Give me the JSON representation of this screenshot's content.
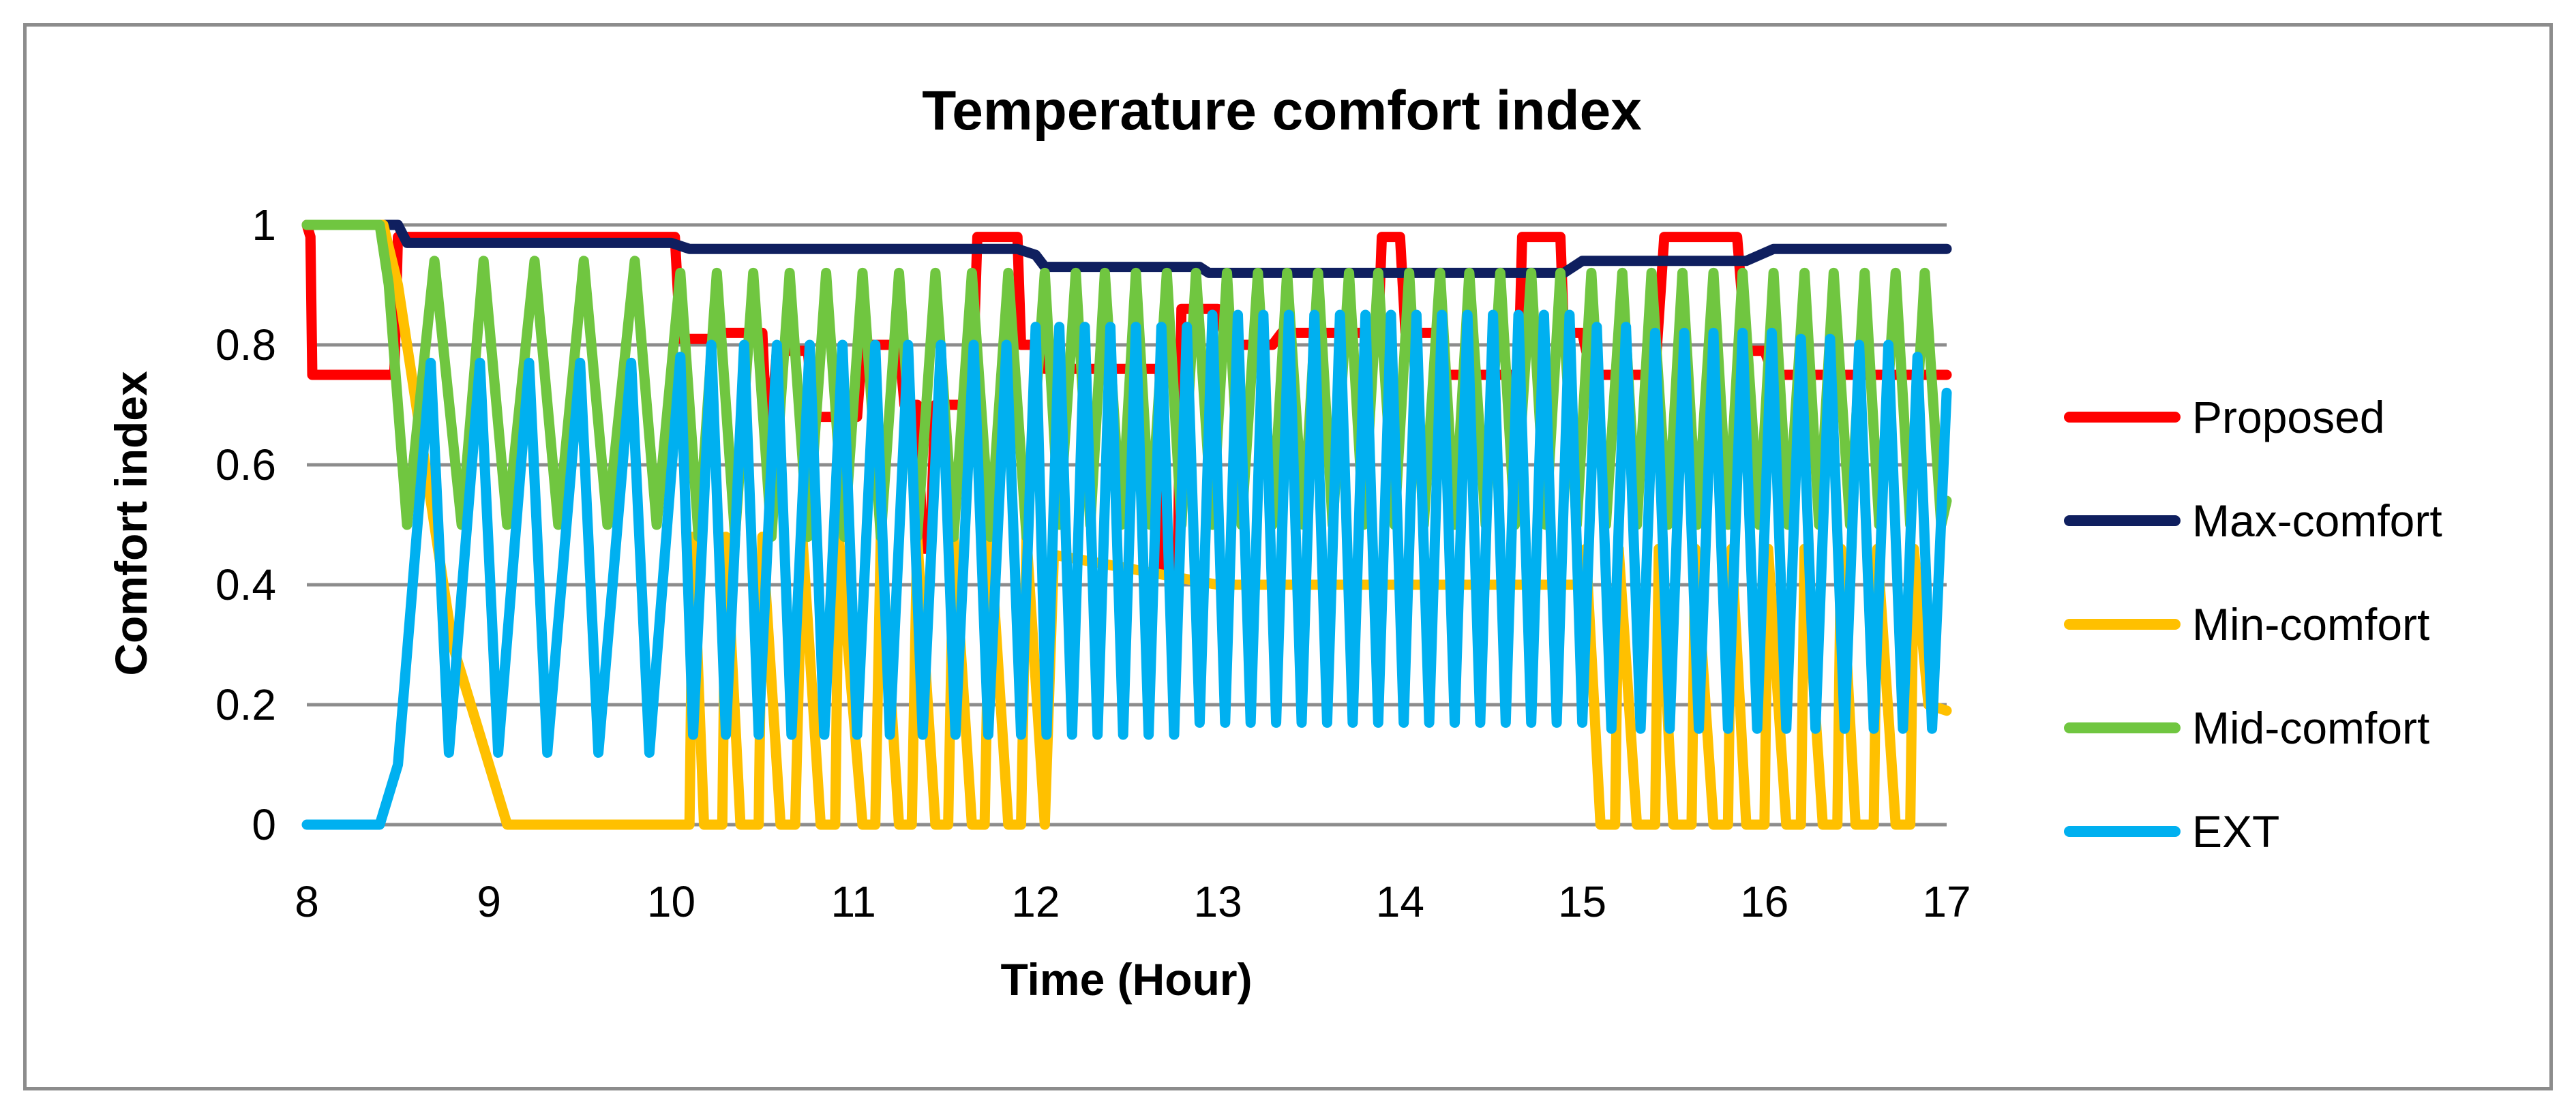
{
  "chart_data": {
    "type": "line",
    "title": "Temperature comfort index",
    "xlabel": "Time (Hour)",
    "ylabel": "Comfort index",
    "xlim": [
      8,
      17
    ],
    "ylim": [
      0,
      1
    ],
    "x_ticks": [
      "8",
      "9",
      "10",
      "11",
      "12",
      "13",
      "14",
      "15",
      "16",
      "17"
    ],
    "y_ticks": [
      "0",
      "0.2",
      "0.4",
      "0.6",
      "0.8",
      "1"
    ],
    "grid": "horizontal",
    "legend_position": "right",
    "series": [
      {
        "name": "Proposed",
        "color": "#ff0000",
        "x": [
          8,
          8.02,
          8.03,
          8.48,
          8.5,
          10.02,
          10.05,
          10.25,
          10.28,
          10.5,
          10.52,
          10.55,
          10.58,
          10.75,
          10.78,
          11.02,
          11.05,
          11.25,
          11.28,
          11.35,
          11.38,
          11.42,
          11.45,
          11.65,
          11.68,
          11.9,
          11.92,
          12.02,
          12.05,
          12.68,
          12.7,
          12.78,
          12.8,
          13.0,
          13.05,
          13.3,
          13.35,
          13.88,
          13.9,
          14.0,
          14.03,
          14.2,
          14.25,
          14.65,
          14.67,
          14.88,
          14.9,
          15.0,
          15.05,
          15.4,
          15.45,
          15.85,
          15.9,
          16.0,
          16.05,
          17.0
        ],
        "y": [
          1,
          0.98,
          0.75,
          0.75,
          0.98,
          0.98,
          0.81,
          0.81,
          0.82,
          0.82,
          0.68,
          0.68,
          0.79,
          0.79,
          0.68,
          0.68,
          0.8,
          0.8,
          0.7,
          0.7,
          0.46,
          0.46,
          0.7,
          0.7,
          0.98,
          0.98,
          0.8,
          0.8,
          0.76,
          0.76,
          0.43,
          0.43,
          0.86,
          0.86,
          0.8,
          0.8,
          0.82,
          0.82,
          0.98,
          0.98,
          0.82,
          0.82,
          0.75,
          0.75,
          0.98,
          0.98,
          0.82,
          0.82,
          0.75,
          0.75,
          0.98,
          0.98,
          0.79,
          0.79,
          0.75,
          0.75
        ]
      },
      {
        "name": "Max-comfort",
        "color": "#0f1f5f",
        "x": [
          8,
          8.5,
          8.55,
          10.0,
          10.1,
          11.9,
          12.0,
          12.05,
          12.9,
          12.95,
          13.6,
          14.9,
          15.0,
          15.2,
          15.9,
          16.05,
          17.0
        ],
        "y": [
          1,
          1,
          0.97,
          0.97,
          0.96,
          0.96,
          0.95,
          0.93,
          0.93,
          0.92,
          0.92,
          0.92,
          0.94,
          0.94,
          0.94,
          0.96,
          0.96
        ]
      },
      {
        "name": "Min-comfort",
        "color": "#ffc000",
        "x": [
          8,
          8.42,
          8.5,
          8.8,
          9.1,
          10.05,
          10.1,
          10.12,
          10.18,
          10.28,
          10.3,
          10.38,
          10.48,
          10.5,
          10.6,
          10.68,
          10.72,
          10.82,
          10.9,
          10.92,
          11.05,
          11.12,
          11.15,
          11.25,
          11.32,
          11.35,
          11.45,
          11.52,
          11.55,
          11.65,
          11.72,
          11.75,
          11.85,
          11.92,
          11.95,
          12.05,
          12.1,
          13.0,
          14.0,
          15.0,
          15.02,
          15.1,
          15.18,
          15.2,
          15.3,
          15.4,
          15.42,
          15.5,
          15.6,
          15.62,
          15.72,
          15.8,
          15.82,
          15.9,
          16.0,
          16.02,
          16.12,
          16.2,
          16.22,
          16.32,
          16.4,
          16.42,
          16.5,
          16.6,
          16.62,
          16.72,
          16.8,
          16.82,
          16.9,
          17.0
        ],
        "y": [
          1,
          1,
          0.9,
          0.3,
          0,
          0,
          0,
          0.48,
          0,
          0,
          0.48,
          0,
          0,
          0.48,
          0,
          0,
          0.48,
          0,
          0,
          0.48,
          0,
          0,
          0.48,
          0,
          0,
          0.48,
          0,
          0,
          0.48,
          0,
          0,
          0.48,
          0,
          0,
          0.48,
          0,
          0.45,
          0.4,
          0.4,
          0.4,
          0.46,
          0,
          0,
          0.46,
          0,
          0,
          0.46,
          0,
          0,
          0.46,
          0,
          0,
          0.46,
          0,
          0,
          0.46,
          0,
          0,
          0.46,
          0,
          0,
          0.46,
          0,
          0,
          0.46,
          0,
          0,
          0.46,
          0.2,
          0.19
        ]
      },
      {
        "name": "Mid-comfort",
        "color": "#70c640",
        "x": [
          8,
          8.4,
          8.45,
          8.55,
          8.7,
          8.85,
          8.97,
          9.1,
          9.25,
          9.38,
          9.52,
          9.65,
          9.8,
          9.92,
          10.05,
          10.15,
          10.25,
          10.35,
          10.45,
          10.55,
          10.65,
          10.75,
          10.85,
          10.95,
          11.05,
          11.15,
          11.25,
          11.35,
          11.45,
          11.55,
          11.65,
          11.75,
          11.85,
          11.95,
          12.05,
          12.13,
          12.22,
          12.3,
          12.38,
          12.47,
          12.55,
          12.63,
          12.72,
          12.8,
          12.88,
          12.97,
          13.05,
          13.13,
          13.22,
          13.3,
          13.38,
          13.47,
          13.55,
          13.63,
          13.72,
          13.8,
          13.88,
          13.97,
          14.05,
          14.13,
          14.22,
          14.3,
          14.38,
          14.47,
          14.55,
          14.63,
          14.72,
          14.8,
          14.88,
          14.97,
          15.05,
          15.13,
          15.22,
          15.3,
          15.38,
          15.47,
          15.55,
          15.63,
          15.72,
          15.8,
          15.88,
          15.97,
          16.05,
          16.13,
          16.22,
          16.3,
          16.38,
          16.47,
          16.55,
          16.63,
          16.72,
          16.8,
          16.88,
          16.97,
          17.0
        ],
        "y": [
          1,
          1,
          0.9,
          0.5,
          0.94,
          0.5,
          0.94,
          0.5,
          0.94,
          0.5,
          0.94,
          0.5,
          0.94,
          0.5,
          0.92,
          0.48,
          0.92,
          0.48,
          0.92,
          0.48,
          0.92,
          0.48,
          0.92,
          0.48,
          0.92,
          0.48,
          0.92,
          0.48,
          0.92,
          0.48,
          0.92,
          0.48,
          0.92,
          0.48,
          0.92,
          0.5,
          0.92,
          0.5,
          0.92,
          0.5,
          0.92,
          0.5,
          0.92,
          0.5,
          0.92,
          0.5,
          0.92,
          0.5,
          0.92,
          0.5,
          0.92,
          0.5,
          0.92,
          0.5,
          0.92,
          0.5,
          0.92,
          0.5,
          0.92,
          0.5,
          0.92,
          0.5,
          0.92,
          0.5,
          0.92,
          0.5,
          0.92,
          0.5,
          0.92,
          0.5,
          0.92,
          0.5,
          0.92,
          0.5,
          0.92,
          0.5,
          0.92,
          0.5,
          0.92,
          0.5,
          0.92,
          0.5,
          0.92,
          0.5,
          0.92,
          0.5,
          0.92,
          0.5,
          0.92,
          0.5,
          0.92,
          0.5,
          0.92,
          0.5,
          0.54
        ]
      },
      {
        "name": "EXT",
        "color": "#00b0f0",
        "x": [
          8,
          8.4,
          8.5,
          8.68,
          8.78,
          8.95,
          9.05,
          9.22,
          9.32,
          9.5,
          9.6,
          9.78,
          9.88,
          10.05,
          10.12,
          10.22,
          10.3,
          10.4,
          10.48,
          10.58,
          10.66,
          10.76,
          10.84,
          10.94,
          11.02,
          11.12,
          11.2,
          11.3,
          11.38,
          11.48,
          11.56,
          11.66,
          11.74,
          11.84,
          11.92,
          12.0,
          12.06,
          12.13,
          12.2,
          12.27,
          12.34,
          12.41,
          12.48,
          12.55,
          12.62,
          12.69,
          12.76,
          12.83,
          12.9,
          12.97,
          13.04,
          13.11,
          13.18,
          13.25,
          13.32,
          13.39,
          13.46,
          13.53,
          13.6,
          13.67,
          13.74,
          13.81,
          13.88,
          13.95,
          14.02,
          14.09,
          14.16,
          14.23,
          14.3,
          14.37,
          14.44,
          14.51,
          14.58,
          14.65,
          14.72,
          14.79,
          14.86,
          14.93,
          15.0,
          15.08,
          15.16,
          15.24,
          15.32,
          15.4,
          15.48,
          15.56,
          15.64,
          15.72,
          15.8,
          15.88,
          15.96,
          16.04,
          16.12,
          16.2,
          16.28,
          16.36,
          16.44,
          16.52,
          16.6,
          16.68,
          16.76,
          16.84,
          16.92,
          17.0
        ],
        "y": [
          0,
          0,
          0.1,
          0.77,
          0.12,
          0.77,
          0.12,
          0.77,
          0.12,
          0.77,
          0.12,
          0.77,
          0.12,
          0.78,
          0.15,
          0.8,
          0.15,
          0.8,
          0.15,
          0.8,
          0.15,
          0.8,
          0.15,
          0.8,
          0.15,
          0.8,
          0.15,
          0.8,
          0.15,
          0.8,
          0.15,
          0.8,
          0.15,
          0.8,
          0.15,
          0.83,
          0.15,
          0.83,
          0.15,
          0.83,
          0.15,
          0.83,
          0.15,
          0.83,
          0.15,
          0.83,
          0.15,
          0.83,
          0.17,
          0.85,
          0.17,
          0.85,
          0.17,
          0.85,
          0.17,
          0.85,
          0.17,
          0.85,
          0.17,
          0.85,
          0.17,
          0.85,
          0.17,
          0.85,
          0.17,
          0.85,
          0.17,
          0.85,
          0.17,
          0.85,
          0.17,
          0.85,
          0.17,
          0.85,
          0.17,
          0.85,
          0.17,
          0.85,
          0.17,
          0.83,
          0.16,
          0.83,
          0.16,
          0.82,
          0.16,
          0.82,
          0.16,
          0.82,
          0.16,
          0.82,
          0.16,
          0.82,
          0.16,
          0.81,
          0.16,
          0.81,
          0.16,
          0.8,
          0.16,
          0.8,
          0.16,
          0.78,
          0.16,
          0.72
        ]
      }
    ]
  }
}
